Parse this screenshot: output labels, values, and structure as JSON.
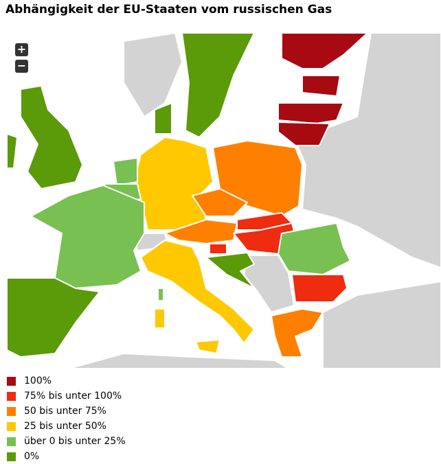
{
  "title": "Abhängigkeit der EU-Staaten vom russischen Gas",
  "zoom": {
    "in": "+",
    "out": "−"
  },
  "legend": [
    {
      "label": "100%",
      "color": "#a80a12"
    },
    {
      "label": "75% bis unter 100%",
      "color": "#ef2b10"
    },
    {
      "label": "50 bis unter 75%",
      "color": "#ff8000"
    },
    {
      "label": "25 bis unter 50%",
      "color": "#ffc800"
    },
    {
      "label": "über 0 bis unter 25%",
      "color": "#78c052"
    },
    {
      "label": "0%",
      "color": "#5b9a08"
    }
  ]
}
